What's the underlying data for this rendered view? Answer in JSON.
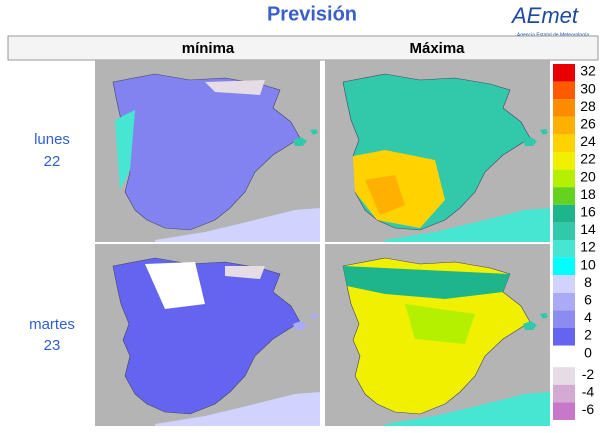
{
  "header": {
    "title": "Previsión",
    "logo": "AEmet",
    "logo_subtitle": "Agencia Estatal de Meteorología"
  },
  "columns": [
    "mínima",
    "Máxima"
  ],
  "rows": [
    {
      "day": "lunes",
      "date": "22"
    },
    {
      "day": "martes",
      "date": "23"
    }
  ],
  "legend": {
    "levels": [
      {
        "value": 32,
        "color": "#e80000"
      },
      {
        "value": 30,
        "color": "#ff5a00"
      },
      {
        "value": 28,
        "color": "#ff8c00"
      },
      {
        "value": 26,
        "color": "#ffb000"
      },
      {
        "value": 24,
        "color": "#ffd200"
      },
      {
        "value": 22,
        "color": "#f0f000"
      },
      {
        "value": 20,
        "color": "#b4f000"
      },
      {
        "value": 18,
        "color": "#64d21e"
      },
      {
        "value": 16,
        "color": "#1eb48c"
      },
      {
        "value": 14,
        "color": "#32c8aa"
      },
      {
        "value": 12,
        "color": "#46e6d2"
      },
      {
        "value": 10,
        "color": "#00ffff"
      },
      {
        "value": 8,
        "color": "#d2d2ff"
      },
      {
        "value": 6,
        "color": "#aaaaf5"
      },
      {
        "value": 4,
        "color": "#8c8cf0"
      },
      {
        "value": 2,
        "color": "#6464f0"
      },
      {
        "value": 0,
        "color": "#ffffff"
      },
      {
        "value": -2,
        "color": "#e6dce6"
      },
      {
        "value": -4,
        "color": "#d2aad2"
      },
      {
        "value": -6,
        "color": "#c878c8"
      }
    ]
  }
}
